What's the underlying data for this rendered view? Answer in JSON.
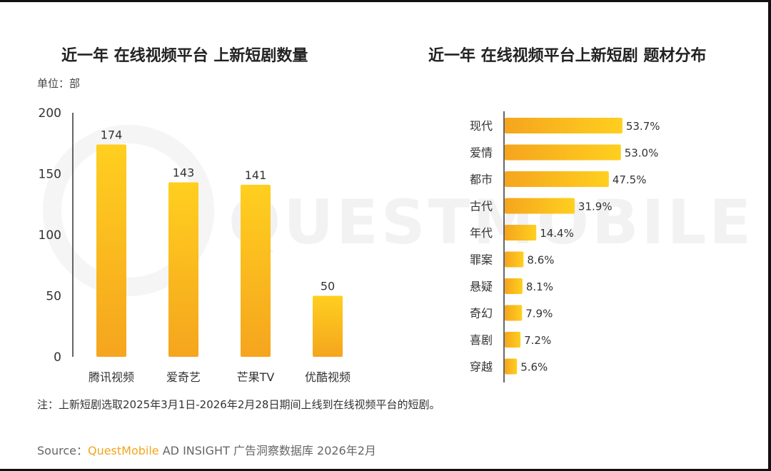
{
  "left_chart": {
    "title": "近一年 在线视频平台 上新短剧数量",
    "unit_label": "单位：部"
  },
  "right_chart": {
    "title": "近一年 在线视频平台上新短剧 题材分布"
  },
  "note": "注：上新短剧选取2025年3月1日-2026年2月28日期间上线到在线视频平台的短剧。",
  "source": {
    "prefix": "Source：",
    "brand": "QuestMobile",
    "rest": " AD INSIGHT 广告洞察数据库 2026年2月"
  },
  "watermark": "QUESTMOBILE",
  "colors": {
    "bar_top": "#ffcf1f",
    "bar_bottom": "#f5a51e",
    "axis": "#333333"
  },
  "chart_data": [
    {
      "type": "bar",
      "title": "近一年 在线视频平台 上新短剧数量",
      "ylabel": "单位：部",
      "categories": [
        "腾讯视频",
        "爱奇艺",
        "芒果TV",
        "优酷视频"
      ],
      "values": [
        174,
        143,
        141,
        50
      ],
      "value_labels": [
        "174",
        "143",
        "141",
        "50"
      ],
      "ylim": [
        0,
        200
      ],
      "yticks": [
        0,
        50,
        100,
        150,
        200
      ],
      "grid": false
    },
    {
      "type": "bar",
      "orientation": "horizontal",
      "title": "近一年 在线视频平台上新短剧 题材分布",
      "categories": [
        "现代",
        "爱情",
        "都市",
        "古代",
        "年代",
        "罪案",
        "悬疑",
        "奇幻",
        "喜剧",
        "穿越"
      ],
      "values": [
        53.7,
        53.0,
        47.5,
        31.9,
        14.4,
        8.6,
        8.1,
        7.9,
        7.2,
        5.6
      ],
      "value_labels": [
        "53.7%",
        "53.0%",
        "47.5%",
        "31.9%",
        "14.4%",
        "8.6%",
        "8.1%",
        "7.9%",
        "7.2%",
        "5.6%"
      ],
      "xlim": [
        0,
        60
      ],
      "grid": false
    }
  ]
}
